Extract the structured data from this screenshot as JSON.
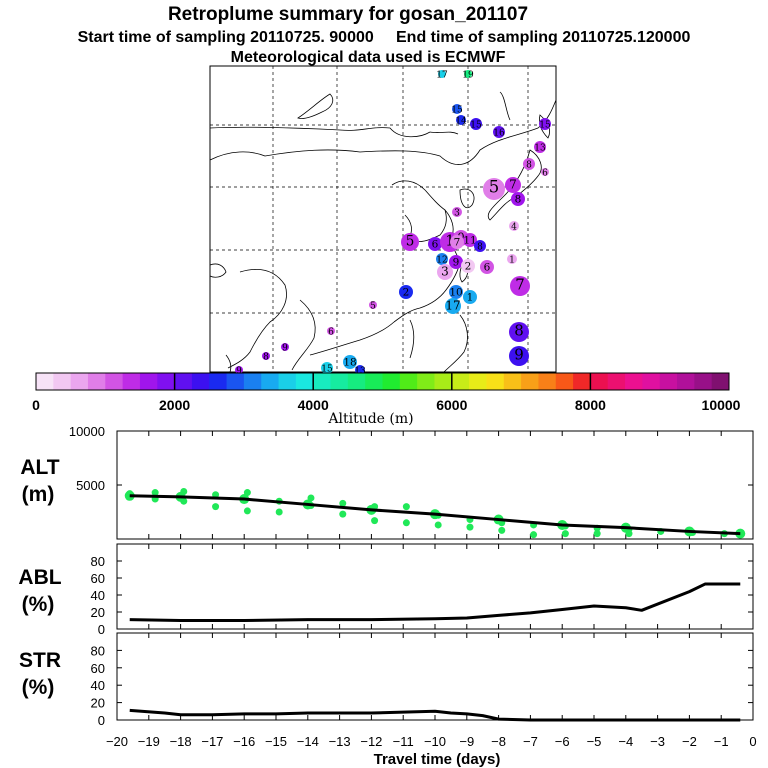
{
  "header": {
    "title": "Retroplume summary for gosan_201107",
    "sampling_line": "Start time of sampling 20110725. 90000     End time of sampling 20110725.120000",
    "met_line": "Meteorological data used is ECMWF"
  },
  "colorbar": {
    "label": "Altitude (m)",
    "tick_labels": [
      "0",
      "2000",
      "4000",
      "6000",
      "8000",
      "10000"
    ],
    "colors": [
      "#f7e3f7",
      "#f2c8f2",
      "#eba6ef",
      "#e07ee8",
      "#d254e4",
      "#bf2ce6",
      "#a015ec",
      "#8010f0",
      "#6010f0",
      "#3c10f0",
      "#1a2af0",
      "#1a55f0",
      "#1a80f0",
      "#18aaf0",
      "#1acfe8",
      "#1ae8e0",
      "#18ecc0",
      "#16eca0",
      "#16ec80",
      "#18ec58",
      "#20ec30",
      "#50ec18",
      "#80ec18",
      "#a8ec18",
      "#c8ec18",
      "#e8ec18",
      "#f8e018",
      "#f8c018",
      "#f8a018",
      "#f88018",
      "#f85818",
      "#f02828",
      "#ec1050",
      "#ec1070",
      "#ec1090",
      "#e010a0",
      "#c810a0",
      "#b0109a",
      "#981088",
      "#801070"
    ]
  },
  "map": {
    "labels": [
      {
        "n": "17",
        "c": "#1acfe8"
      },
      {
        "n": "19",
        "c": "#16ec80"
      },
      {
        "n": "15",
        "c": "#1a55f0"
      },
      {
        "n": "14",
        "c": "#1a2af0"
      },
      {
        "n": "15",
        "c": "#3c10f0"
      },
      {
        "n": "16",
        "c": "#6010f0"
      },
      {
        "n": "15",
        "c": "#8010f0"
      },
      {
        "n": "13",
        "c": "#bf2ce6"
      },
      {
        "n": "8",
        "c": "#d254e4"
      },
      {
        "n": "6",
        "c": "#e07ee8"
      },
      {
        "n": "5",
        "c": "#e07ee8"
      },
      {
        "n": "7",
        "c": "#bf2ce6"
      },
      {
        "n": "8",
        "c": "#a015ec"
      },
      {
        "n": "3",
        "c": "#d254e4"
      },
      {
        "n": "4",
        "c": "#eba6ef"
      },
      {
        "n": "5",
        "c": "#bf2ce6"
      },
      {
        "n": "6",
        "c": "#8010f0"
      },
      {
        "n": "1",
        "c": "#bf2ce6"
      },
      {
        "n": "0",
        "c": "#d254e4"
      },
      {
        "n": "11",
        "c": "#bf2ce6"
      },
      {
        "n": "12",
        "c": "#1a80f0"
      },
      {
        "n": "9",
        "c": "#a015ec"
      },
      {
        "n": "7",
        "c": "#e07ee8"
      },
      {
        "n": "8",
        "c": "#3c10f0"
      },
      {
        "n": "1",
        "c": "#eba6ef"
      },
      {
        "n": "3",
        "c": "#eba6ef"
      },
      {
        "n": "2",
        "c": "#f2c8f2"
      },
      {
        "n": "6",
        "c": "#d254e4"
      },
      {
        "n": "7",
        "c": "#bf2ce6"
      },
      {
        "n": "2",
        "c": "#1a2af0"
      },
      {
        "n": "10",
        "c": "#1a80f0"
      },
      {
        "n": "1",
        "c": "#18aaf0"
      },
      {
        "n": "17",
        "c": "#18aaf0"
      },
      {
        "n": "8",
        "c": "#6010f0"
      },
      {
        "n": "9",
        "c": "#3c10f0"
      },
      {
        "n": "5",
        "c": "#d254e4"
      },
      {
        "n": "6",
        "c": "#d254e4"
      },
      {
        "n": "9",
        "c": "#a015ec"
      },
      {
        "n": "8",
        "c": "#a015ec"
      },
      {
        "n": "18",
        "c": "#18aaf0"
      },
      {
        "n": "15",
        "c": "#1acfe8"
      },
      {
        "n": "13",
        "c": "#1a2af0"
      },
      {
        "n": "9",
        "c": "#a015ec"
      }
    ]
  },
  "chart_data": [
    {
      "type": "line",
      "panel": "ALT",
      "ylabel_line1": "ALT",
      "ylabel_line2": "(m)",
      "ylim": [
        0,
        10000
      ],
      "yticks": [
        "10000",
        "5000"
      ],
      "x": [
        -19.6,
        -18,
        -16,
        -14,
        -12,
        -10,
        -8,
        -6,
        -4,
        -2,
        -0.4
      ],
      "values": [
        4000,
        3900,
        3700,
        3200,
        2700,
        2300,
        1800,
        1300,
        1050,
        700,
        500
      ],
      "scatter": [
        {
          "x": -19.6,
          "y": 4200
        },
        {
          "x": -19.6,
          "y": 3900
        },
        {
          "x": -18.8,
          "y": 4300
        },
        {
          "x": -18.8,
          "y": 3700
        },
        {
          "x": -17.9,
          "y": 4400
        },
        {
          "x": -17.9,
          "y": 3500
        },
        {
          "x": -16.9,
          "y": 4100
        },
        {
          "x": -16.9,
          "y": 3000
        },
        {
          "x": -15.9,
          "y": 4300
        },
        {
          "x": -15.9,
          "y": 2600
        },
        {
          "x": -14.9,
          "y": 3500
        },
        {
          "x": -14.9,
          "y": 2500
        },
        {
          "x": -13.9,
          "y": 3800
        },
        {
          "x": -13.9,
          "y": 3100
        },
        {
          "x": -12.9,
          "y": 3300
        },
        {
          "x": -12.9,
          "y": 2300
        },
        {
          "x": -11.9,
          "y": 3000
        },
        {
          "x": -11.9,
          "y": 1700
        },
        {
          "x": -10.9,
          "y": 3000
        },
        {
          "x": -10.9,
          "y": 1500
        },
        {
          "x": -9.9,
          "y": 2200
        },
        {
          "x": -9.9,
          "y": 1300
        },
        {
          "x": -8.9,
          "y": 1800
        },
        {
          "x": -8.9,
          "y": 1100
        },
        {
          "x": -7.9,
          "y": 1500
        },
        {
          "x": -7.9,
          "y": 800
        },
        {
          "x": -6.9,
          "y": 1300
        },
        {
          "x": -6.9,
          "y": 400
        },
        {
          "x": -5.9,
          "y": 1200
        },
        {
          "x": -5.9,
          "y": 500
        },
        {
          "x": -4.9,
          "y": 1000
        },
        {
          "x": -4.9,
          "y": 500
        },
        {
          "x": -3.9,
          "y": 900
        },
        {
          "x": -3.9,
          "y": 500
        },
        {
          "x": -2.9,
          "y": 700
        },
        {
          "x": -1.9,
          "y": 600
        },
        {
          "x": -0.9,
          "y": 500
        },
        {
          "x": -0.4,
          "y": 400
        }
      ]
    },
    {
      "type": "line",
      "panel": "ABL",
      "ylabel_line1": "ABL",
      "ylabel_line2": "(%)",
      "ylim": [
        0,
        100
      ],
      "yticks": [
        "80",
        "60",
        "40",
        "20",
        "0"
      ],
      "x": [
        -19.6,
        -18,
        -16,
        -14,
        -12,
        -10,
        -9,
        -8,
        -7,
        -6,
        -5,
        -4,
        -3.5,
        -2,
        -1.5,
        -0.4
      ],
      "values": [
        11,
        10,
        10,
        11,
        11,
        12,
        13,
        16,
        19,
        23,
        27,
        25,
        22,
        44,
        53,
        53
      ]
    },
    {
      "type": "line",
      "panel": "STR",
      "ylabel_line1": "STR",
      "ylabel_line2": "(%)",
      "ylim": [
        0,
        100
      ],
      "yticks": [
        "80",
        "60",
        "40",
        "20",
        "0"
      ],
      "x": [
        -19.6,
        -18.5,
        -18,
        -17,
        -16,
        -15,
        -14,
        -13,
        -12,
        -11,
        -10,
        -9.5,
        -9,
        -8.5,
        -8,
        -7,
        -0.4
      ],
      "values": [
        11,
        8,
        6,
        6,
        7,
        7,
        8,
        8,
        8,
        9,
        10,
        8,
        7,
        5,
        1,
        0,
        0
      ],
      "xlabel": "Travel time (days)",
      "xlim": [
        -20,
        0
      ],
      "xtick_labels": [
        "−20",
        "−19",
        "−18",
        "−17",
        "−16",
        "−15",
        "−14",
        "−13",
        "−12",
        "−11",
        "−10",
        "−9",
        "−8",
        "−7",
        "−6",
        "−5",
        "−4",
        "−3",
        "−2",
        "−1",
        "0"
      ]
    }
  ]
}
